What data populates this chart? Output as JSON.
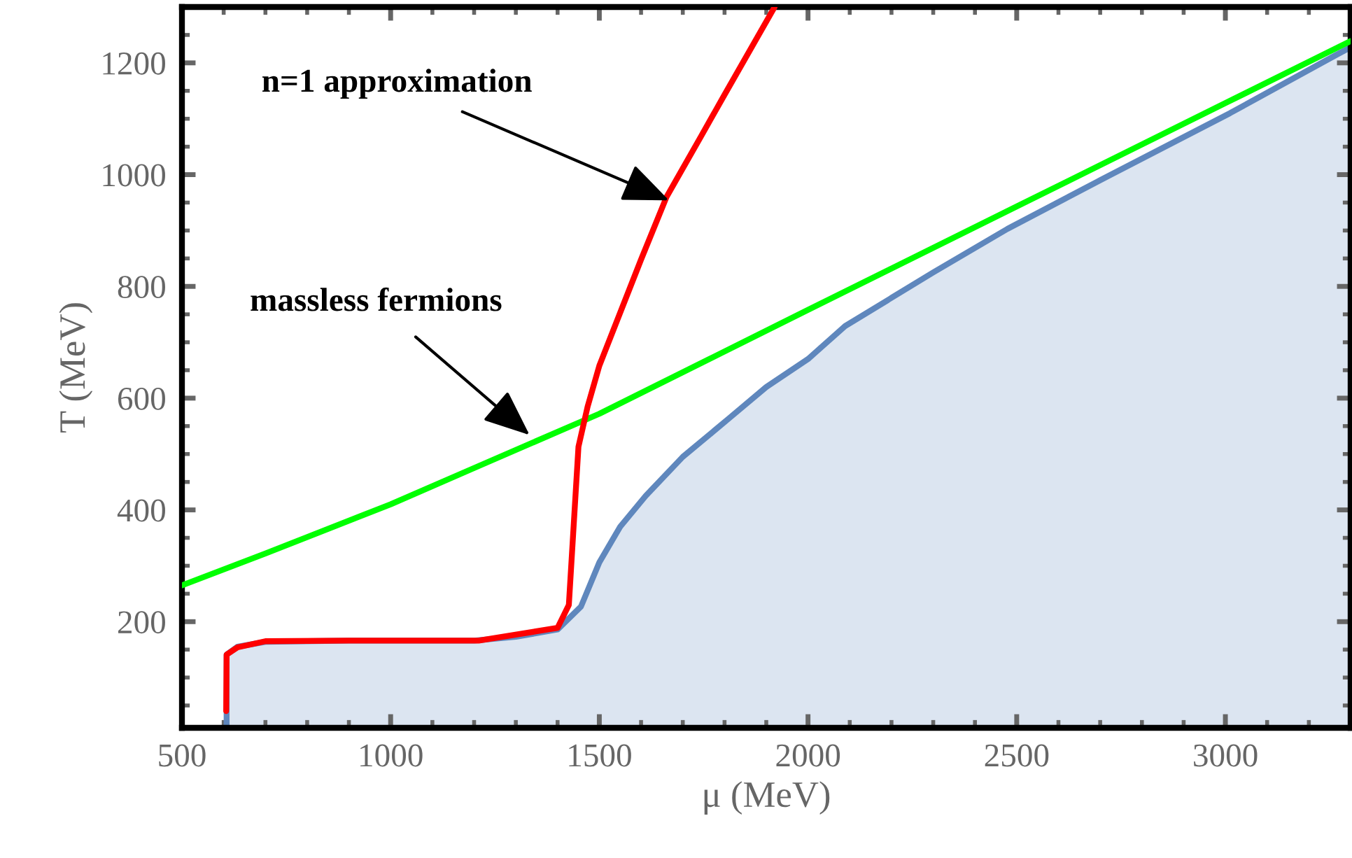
{
  "chart_data": {
    "type": "line",
    "xlabel": "μ (MeV)",
    "ylabel": "T (MeV)",
    "xlim": [
      500,
      3300
    ],
    "ylim": [
      10,
      1300
    ],
    "xticks": [
      500,
      1000,
      1500,
      2000,
      2500,
      3000
    ],
    "yticks": [
      200,
      400,
      600,
      800,
      1000,
      1200
    ],
    "grid": false,
    "series": [
      {
        "type": "area",
        "color": "#5f87bd",
        "x": [
          607,
          607,
          633,
          700,
          900,
          1200,
          1300,
          1400,
          1456,
          1500,
          1550,
          1611,
          1700,
          1811,
          1900,
          2000,
          2089,
          2300,
          2478,
          2700,
          3011,
          3260,
          3300
        ],
        "values": [
          10,
          141,
          155,
          164,
          166,
          166,
          173,
          186,
          227,
          306,
          370,
          425,
          495,
          564,
          620,
          670,
          729,
          825,
          903,
          990,
          1110,
          1212,
          1228
        ]
      },
      {
        "color": "#00ff00",
        "x": [
          500,
          700,
          1000,
          1200,
          1500,
          2000,
          2500,
          3000,
          3300
        ],
        "values": [
          265,
          322,
          410,
          475,
          572,
          758,
          943,
          1128,
          1239
        ]
      },
      {
        "color": "#ff0000",
        "x": [
          606,
          607,
          633,
          700,
          900,
          1211,
          1400,
          1427,
          1450,
          1472,
          1500,
          1600,
          1661,
          1744,
          1800,
          1920
        ],
        "values": [
          40,
          141,
          154,
          165,
          166,
          166,
          189,
          230,
          513,
          585,
          658,
          848,
          960,
          1069,
          1143,
          1300
        ]
      }
    ],
    "annotations": [
      {
        "text": "n=1 approximation",
        "x": 1667,
        "y": 954
      },
      {
        "text": "massless fermions",
        "x": 1333,
        "y": 534
      }
    ]
  }
}
